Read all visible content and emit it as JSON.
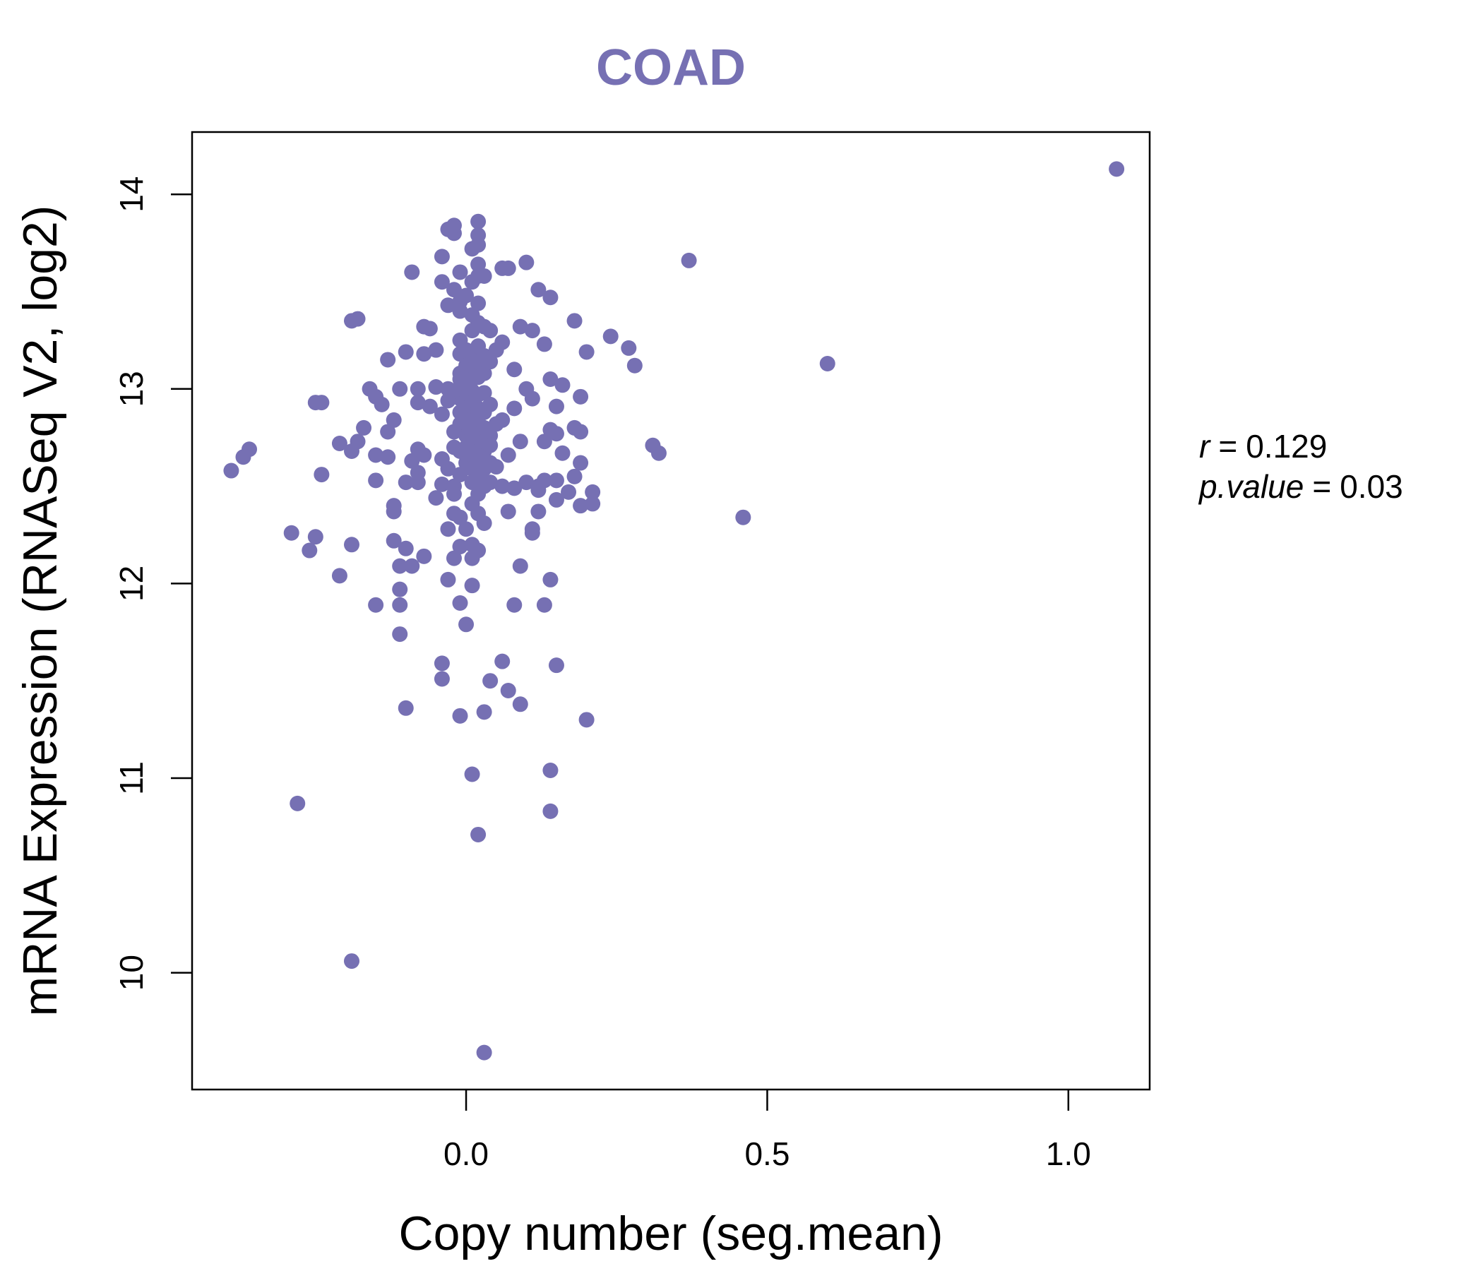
{
  "chart_data": {
    "type": "scatter",
    "title": "COAD",
    "xlabel": "Copy number (seg.mean)",
    "ylabel": "mRNA Expression (RNASeq V2, log2)",
    "xlim": [
      -0.455,
      1.135
    ],
    "ylim": [
      9.4,
      14.32
    ],
    "x_ticks": [
      0.0,
      0.5,
      1.0
    ],
    "x_tick_labels": [
      "0.0",
      "0.5",
      "1.0"
    ],
    "y_ticks": [
      10,
      11,
      12,
      13,
      14
    ],
    "y_tick_labels": [
      "10",
      "11",
      "12",
      "13",
      "14"
    ],
    "grid": false,
    "point_color": "#7670B3",
    "stats": {
      "r_label": "r",
      "r_value": "0.129",
      "p_label": "p.value",
      "p_value": "0.03"
    },
    "points": [
      [
        1.08,
        14.13
      ],
      [
        0.37,
        13.66
      ],
      [
        0.6,
        13.13
      ],
      [
        0.46,
        12.34
      ],
      [
        -0.39,
        12.58
      ],
      [
        -0.37,
        12.65
      ],
      [
        -0.36,
        12.69
      ],
      [
        -0.29,
        12.26
      ],
      [
        -0.28,
        10.87
      ],
      [
        -0.26,
        12.17
      ],
      [
        -0.25,
        12.24
      ],
      [
        -0.25,
        12.93
      ],
      [
        -0.24,
        12.93
      ],
      [
        -0.24,
        12.56
      ],
      [
        -0.21,
        12.72
      ],
      [
        -0.21,
        12.04
      ],
      [
        -0.19,
        13.35
      ],
      [
        -0.18,
        13.36
      ],
      [
        -0.19,
        12.68
      ],
      [
        -0.19,
        12.2
      ],
      [
        -0.19,
        10.06
      ],
      [
        -0.17,
        12.8
      ],
      [
        -0.18,
        12.73
      ],
      [
        -0.16,
        13.0
      ],
      [
        -0.15,
        12.96
      ],
      [
        -0.14,
        12.92
      ],
      [
        -0.15,
        12.66
      ],
      [
        -0.15,
        12.53
      ],
      [
        -0.15,
        11.89
      ],
      [
        -0.13,
        13.15
      ],
      [
        -0.13,
        12.65
      ],
      [
        -0.13,
        12.78
      ],
      [
        -0.12,
        12.4
      ],
      [
        -0.12,
        12.37
      ],
      [
        -0.12,
        12.22
      ],
      [
        -0.12,
        12.84
      ],
      [
        -0.11,
        13.0
      ],
      [
        -0.11,
        12.09
      ],
      [
        -0.11,
        11.97
      ],
      [
        -0.11,
        11.89
      ],
      [
        -0.11,
        11.74
      ],
      [
        -0.1,
        11.36
      ],
      [
        -0.1,
        13.19
      ],
      [
        -0.1,
        12.52
      ],
      [
        -0.1,
        12.18
      ],
      [
        -0.09,
        13.6
      ],
      [
        -0.09,
        12.63
      ],
      [
        -0.09,
        12.09
      ],
      [
        -0.08,
        13.0
      ],
      [
        -0.08,
        12.93
      ],
      [
        -0.08,
        12.69
      ],
      [
        -0.08,
        12.57
      ],
      [
        -0.08,
        12.52
      ],
      [
        -0.07,
        13.32
      ],
      [
        -0.07,
        13.18
      ],
      [
        -0.07,
        12.66
      ],
      [
        -0.07,
        12.14
      ],
      [
        -0.06,
        13.31
      ],
      [
        -0.06,
        12.91
      ],
      [
        -0.05,
        13.01
      ],
      [
        -0.05,
        12.44
      ],
      [
        -0.05,
        13.2
      ],
      [
        -0.04,
        13.68
      ],
      [
        -0.04,
        13.55
      ],
      [
        -0.04,
        12.51
      ],
      [
        -0.04,
        11.59
      ],
      [
        -0.04,
        11.51
      ],
      [
        -0.03,
        13.82
      ],
      [
        -0.03,
        13.43
      ],
      [
        -0.03,
        13.0
      ],
      [
        -0.03,
        12.59
      ],
      [
        -0.03,
        12.28
      ],
      [
        -0.03,
        12.02
      ],
      [
        -0.02,
        13.8
      ],
      [
        -0.02,
        13.84
      ],
      [
        -0.02,
        13.51
      ],
      [
        -0.02,
        12.7
      ],
      [
        -0.02,
        12.5
      ],
      [
        -0.02,
        12.36
      ],
      [
        -0.02,
        12.13
      ],
      [
        -0.02,
        12.46
      ],
      [
        -0.01,
        13.6
      ],
      [
        -0.01,
        13.45
      ],
      [
        -0.01,
        13.4
      ],
      [
        -0.01,
        13.25
      ],
      [
        -0.01,
        13.18
      ],
      [
        -0.01,
        13.08
      ],
      [
        -0.01,
        12.95
      ],
      [
        -0.01,
        12.88
      ],
      [
        -0.01,
        12.82
      ],
      [
        -0.01,
        12.68
      ],
      [
        -0.01,
        12.56
      ],
      [
        -0.01,
        12.34
      ],
      [
        -0.01,
        12.19
      ],
      [
        -0.01,
        11.9
      ],
      [
        -0.01,
        11.32
      ],
      [
        0.0,
        13.48
      ],
      [
        0.0,
        13.12
      ],
      [
        0.0,
        13.02
      ],
      [
        0.0,
        12.98
      ],
      [
        0.0,
        12.9
      ],
      [
        0.0,
        12.76
      ],
      [
        0.0,
        12.7
      ],
      [
        0.0,
        12.66
      ],
      [
        0.0,
        12.62
      ],
      [
        0.0,
        12.28
      ],
      [
        0.0,
        11.79
      ],
      [
        0.01,
        13.72
      ],
      [
        0.01,
        13.55
      ],
      [
        0.01,
        13.38
      ],
      [
        0.01,
        13.3
      ],
      [
        0.01,
        13.18
      ],
      [
        0.01,
        13.1
      ],
      [
        0.01,
        13.05
      ],
      [
        0.01,
        12.99
      ],
      [
        0.01,
        12.93
      ],
      [
        0.01,
        12.86
      ],
      [
        0.01,
        12.8
      ],
      [
        0.01,
        12.73
      ],
      [
        0.01,
        12.66
      ],
      [
        0.01,
        12.59
      ],
      [
        0.01,
        12.52
      ],
      [
        0.01,
        12.41
      ],
      [
        0.01,
        12.2
      ],
      [
        0.01,
        12.13
      ],
      [
        0.01,
        11.99
      ],
      [
        0.01,
        11.02
      ],
      [
        0.02,
        13.86
      ],
      [
        0.02,
        13.79
      ],
      [
        0.02,
        13.74
      ],
      [
        0.02,
        13.64
      ],
      [
        0.02,
        13.58
      ],
      [
        0.02,
        13.44
      ],
      [
        0.02,
        13.34
      ],
      [
        0.02,
        13.22
      ],
      [
        0.02,
        13.14
      ],
      [
        0.02,
        13.06
      ],
      [
        0.02,
        12.97
      ],
      [
        0.02,
        12.9
      ],
      [
        0.02,
        12.83
      ],
      [
        0.02,
        12.75
      ],
      [
        0.02,
        12.68
      ],
      [
        0.02,
        12.61
      ],
      [
        0.02,
        12.55
      ],
      [
        0.02,
        12.46
      ],
      [
        0.02,
        12.36
      ],
      [
        0.02,
        12.17
      ],
      [
        0.02,
        10.71
      ],
      [
        0.03,
        13.58
      ],
      [
        0.03,
        13.32
      ],
      [
        0.03,
        13.17
      ],
      [
        0.03,
        13.08
      ],
      [
        0.03,
        12.98
      ],
      [
        0.03,
        12.88
      ],
      [
        0.03,
        12.8
      ],
      [
        0.03,
        12.68
      ],
      [
        0.03,
        12.59
      ],
      [
        0.03,
        12.31
      ],
      [
        0.03,
        11.34
      ],
      [
        0.03,
        9.59
      ],
      [
        0.04,
        13.3
      ],
      [
        0.04,
        13.14
      ],
      [
        0.04,
        12.92
      ],
      [
        0.04,
        12.76
      ],
      [
        0.04,
        12.62
      ],
      [
        0.04,
        12.52
      ],
      [
        0.04,
        11.5
      ],
      [
        0.05,
        13.2
      ],
      [
        0.05,
        12.82
      ],
      [
        0.06,
        13.62
      ],
      [
        0.06,
        13.24
      ],
      [
        0.06,
        12.84
      ],
      [
        0.06,
        12.5
      ],
      [
        0.06,
        11.6
      ],
      [
        0.07,
        13.62
      ],
      [
        0.07,
        12.66
      ],
      [
        0.07,
        12.37
      ],
      [
        0.07,
        11.45
      ],
      [
        0.08,
        13.1
      ],
      [
        0.08,
        12.9
      ],
      [
        0.08,
        12.49
      ],
      [
        0.08,
        11.89
      ],
      [
        0.09,
        13.32
      ],
      [
        0.09,
        12.73
      ],
      [
        0.09,
        12.09
      ],
      [
        0.09,
        11.38
      ],
      [
        0.1,
        13.65
      ],
      [
        0.1,
        13.0
      ],
      [
        0.1,
        12.52
      ],
      [
        0.11,
        12.28
      ],
      [
        0.11,
        12.26
      ],
      [
        0.11,
        13.3
      ],
      [
        0.11,
        12.95
      ],
      [
        0.12,
        13.51
      ],
      [
        0.12,
        12.5
      ],
      [
        0.12,
        12.37
      ],
      [
        0.13,
        13.23
      ],
      [
        0.13,
        12.73
      ],
      [
        0.13,
        12.53
      ],
      [
        0.13,
        11.89
      ],
      [
        0.14,
        13.05
      ],
      [
        0.14,
        12.79
      ],
      [
        0.14,
        12.02
      ],
      [
        0.14,
        11.04
      ],
      [
        0.14,
        10.83
      ],
      [
        0.14,
        13.47
      ],
      [
        0.15,
        12.91
      ],
      [
        0.15,
        12.77
      ],
      [
        0.15,
        12.53
      ],
      [
        0.15,
        12.43
      ],
      [
        0.15,
        11.58
      ],
      [
        0.16,
        13.02
      ],
      [
        0.16,
        12.67
      ],
      [
        0.17,
        12.47
      ],
      [
        0.18,
        13.35
      ],
      [
        0.18,
        12.8
      ],
      [
        0.18,
        12.55
      ],
      [
        0.19,
        12.62
      ],
      [
        0.19,
        12.78
      ],
      [
        0.19,
        12.96
      ],
      [
        0.19,
        12.4
      ],
      [
        0.2,
        13.19
      ],
      [
        0.2,
        11.3
      ],
      [
        0.21,
        12.41
      ],
      [
        0.21,
        12.47
      ],
      [
        0.24,
        13.27
      ],
      [
        0.27,
        13.21
      ],
      [
        0.28,
        13.12
      ],
      [
        0.31,
        12.71
      ],
      [
        0.32,
        12.67
      ],
      [
        0.12,
        12.48
      ],
      [
        0.05,
        12.6
      ],
      [
        -0.02,
        12.99
      ],
      [
        0.0,
        13.2
      ],
      [
        0.03,
        12.73
      ],
      [
        -0.04,
        12.64
      ],
      [
        0.01,
        12.77
      ],
      [
        0.02,
        12.89
      ],
      [
        -0.03,
        12.94
      ],
      [
        0.04,
        12.71
      ],
      [
        0.0,
        12.84
      ],
      [
        -0.01,
        13.05
      ],
      [
        0.02,
        12.63
      ],
      [
        0.03,
        12.5
      ],
      [
        -0.04,
        12.87
      ],
      [
        -0.02,
        12.78
      ]
    ]
  }
}
